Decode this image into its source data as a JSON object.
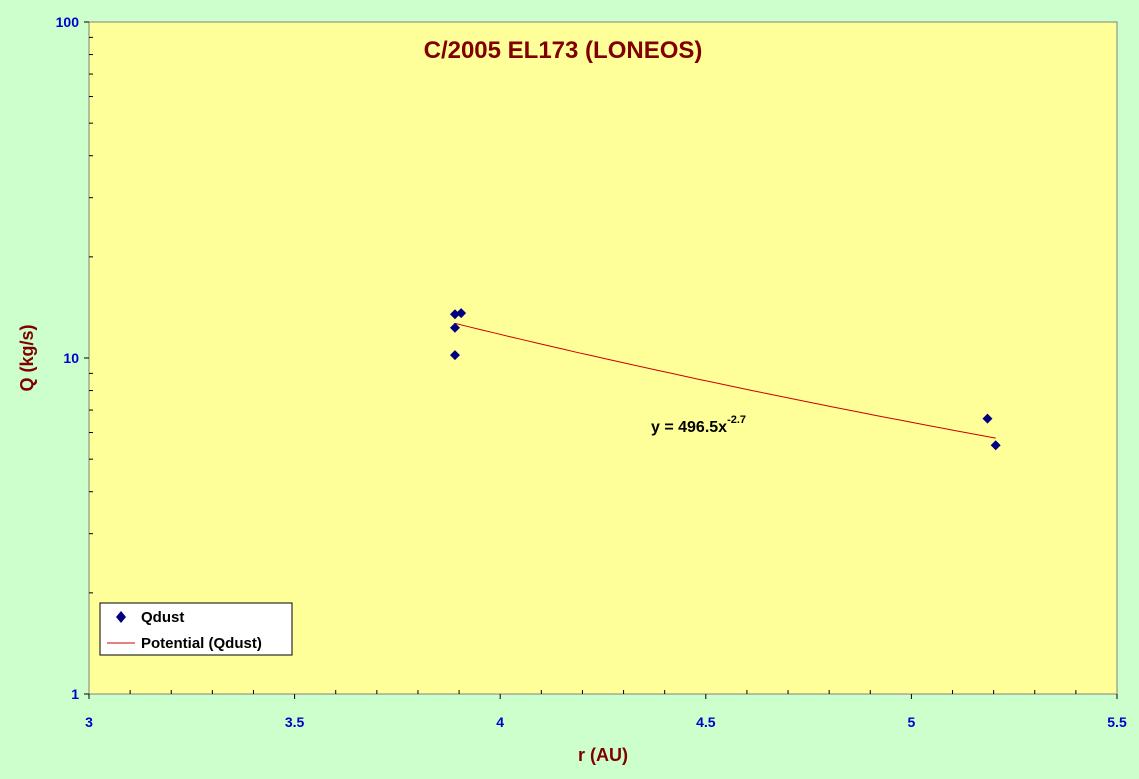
{
  "chart_data": {
    "type": "scatter",
    "title": "C/2005 EL173 (LONEOS)",
    "xlabel": "r (AU)",
    "ylabel": "Q (kg/s)",
    "xlim": [
      3,
      5.5
    ],
    "ylim": [
      1,
      100
    ],
    "yscale": "log",
    "x_ticks": [
      "3",
      "3.5",
      "4",
      "4.5",
      "5",
      "5.5"
    ],
    "y_ticks": [
      "1",
      "10",
      "100"
    ],
    "grid": false,
    "legend_position": "bottom-left",
    "background": "#ffff99",
    "outer_background": "#ccffcc",
    "series": [
      {
        "name": "Qdust",
        "marker": "diamond",
        "color": "#000080",
        "x": [
          3.89,
          3.905,
          3.89,
          3.89,
          5.185,
          5.205
        ],
        "y": [
          13.5,
          13.6,
          12.3,
          10.2,
          6.6,
          5.5
        ]
      }
    ],
    "trendline": {
      "name": "Potential (Qdust)",
      "color": "#cc0000",
      "coefficient": 496.5,
      "exponent": -2.7,
      "x_range": [
        3.89,
        5.205
      ],
      "equation_base": "y = 496.5x",
      "equation_exponent": "-2.7"
    }
  }
}
